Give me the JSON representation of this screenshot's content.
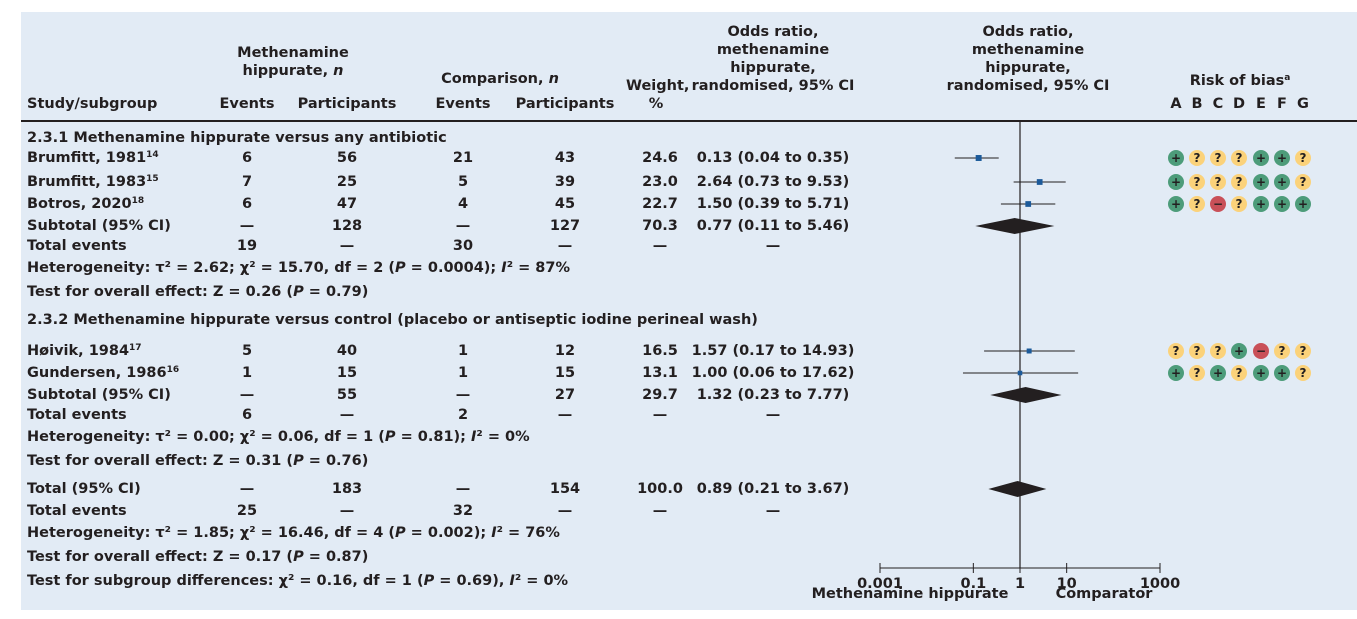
{
  "header": {
    "study": "Study/subgroup",
    "mh_group": "Methenamine hippurate,",
    "comp_group": "Comparison,",
    "n": "n",
    "events": "Events",
    "participants": "Participants",
    "weight": [
      "Weight,",
      "%"
    ],
    "or_text": [
      "Odds ratio,",
      "methenamine",
      "hippurate,",
      "randomised, 95% CI"
    ],
    "or_plot": [
      "Odds ratio,",
      "methenamine",
      "hippurate,",
      "randomised, 95% CI"
    ],
    "bias_title": "Risk of bias",
    "bias_sup": "a",
    "bias_cols": [
      "A",
      "B",
      "C",
      "D",
      "E",
      "F",
      "G"
    ]
  },
  "colors": {
    "panel": "#e2ebf5",
    "marker": "#1c5a9a",
    "diamond": "#231f20",
    "bias_low": "#4d9c7a",
    "bias_unclear": "#fbd27a",
    "bias_high": "#c95058"
  },
  "rows": [
    {
      "type": "sub",
      "label": "2.3.1 Methenamine hippurate versus any antibiotic"
    },
    {
      "type": "study",
      "name": "Brumfitt, 1981",
      "ref": "14",
      "e1": "6",
      "p1": "56",
      "e2": "21",
      "p2": "43",
      "w": "24.6",
      "ci": "0.13 (0.04 to 0.35)",
      "bias": [
        "+",
        "?",
        "?",
        "?",
        "+",
        "+",
        "?"
      ]
    },
    {
      "type": "study",
      "name": "Brumfitt, 1983",
      "ref": "15",
      "e1": "7",
      "p1": "25",
      "e2": "5",
      "p2": "39",
      "w": "23.0",
      "ci": "2.64 (0.73 to 9.53)",
      "bias": [
        "+",
        "?",
        "?",
        "?",
        "+",
        "+",
        "?"
      ]
    },
    {
      "type": "study",
      "name": "Botros, 2020",
      "ref": "18",
      "e1": "6",
      "p1": "47",
      "e2": "4",
      "p2": "45",
      "w": "22.7",
      "ci": "1.50 (0.39 to 5.71)",
      "bias": [
        "+",
        "?",
        "−",
        "?",
        "+",
        "+",
        "+"
      ]
    },
    {
      "type": "total",
      "name": "Subtotal (95% CI)",
      "e1": "—",
      "p1": "128",
      "e2": "—",
      "p2": "127",
      "w": "70.3",
      "ci": "0.77 (0.11 to 5.46)"
    },
    {
      "type": "total",
      "name": "Total events",
      "e1": "19",
      "p1": "—",
      "e2": "30",
      "p2": "—",
      "w": "—",
      "ci": "—"
    },
    {
      "type": "line",
      "text": "Heterogeneity: τ² = 2.62; χ² = 15.70, df = 2 (P = 0.0004); I² = 87%"
    },
    {
      "type": "line",
      "text": "Test for overall effect: Z = 0.26 (P = 0.79)"
    },
    {
      "type": "sub",
      "label": "2.3.2 Methenamine hippurate versus control (placebo or antiseptic iodine perineal wash)"
    },
    {
      "type": "study",
      "name": "Høivik, 1984",
      "ref": "17",
      "e1": "5",
      "p1": "40",
      "e2": "1",
      "p2": "12",
      "w": "16.5",
      "ci": "1.57 (0.17 to 14.93)",
      "bias": [
        "?",
        "?",
        "?",
        "+",
        "−",
        "?",
        "?"
      ]
    },
    {
      "type": "study",
      "name": "Gundersen, 1986",
      "ref": "16",
      "e1": "1",
      "p1": "15",
      "e2": "1",
      "p2": "15",
      "w": "13.1",
      "ci": "1.00 (0.06 to 17.62)",
      "bias": [
        "+",
        "?",
        "+",
        "?",
        "+",
        "+",
        "?"
      ]
    },
    {
      "type": "total",
      "name": "Subtotal (95% CI)",
      "e1": "—",
      "p1": "55",
      "e2": "—",
      "p2": "27",
      "w": "29.7",
      "ci": "1.32 (0.23 to 7.77)"
    },
    {
      "type": "total",
      "name": "Total events",
      "e1": "6",
      "p1": "—",
      "e2": "2",
      "p2": "—",
      "w": "—",
      "ci": "—"
    },
    {
      "type": "line",
      "text": "Heterogeneity: τ² = 0.00; χ² = 0.06, df = 1 (P = 0.81); I² = 0%"
    },
    {
      "type": "line",
      "text": "Test for overall effect: Z = 0.31 (P = 0.76)"
    },
    {
      "type": "total",
      "name": "Total (95% CI)",
      "e1": "—",
      "p1": "183",
      "e2": "—",
      "p2": "154",
      "w": "100.0",
      "ci": "0.89 (0.21 to 3.67)"
    },
    {
      "type": "total",
      "name": "Total events",
      "e1": "25",
      "p1": "—",
      "e2": "32",
      "p2": "—",
      "w": "—",
      "ci": "—"
    },
    {
      "type": "line",
      "text": "Heterogeneity: τ² = 1.85; χ² = 16.46, df = 4 (P = 0.002); I² = 76%"
    },
    {
      "type": "line",
      "text": "Test for overall effect: Z = 0.17 (P = 0.87)"
    },
    {
      "type": "line",
      "text": "Test for subgroup differences: χ² = 0.16, df = 1 (P = 0.69), I² = 0%"
    }
  ],
  "axis": {
    "ticks": [
      "0.001",
      "0.1",
      "1",
      "10",
      "1000"
    ],
    "left_label": "Methenamine hippurate",
    "right_label": "Comparator"
  },
  "chart_data": {
    "type": "forest",
    "scale": "log",
    "xlim": [
      0.001,
      1000
    ],
    "null_value": 1,
    "points": [
      {
        "name": "Brumfitt, 1981",
        "or": 0.13,
        "lo": 0.04,
        "hi": 0.35,
        "weight": 24.6
      },
      {
        "name": "Brumfitt, 1983",
        "or": 2.64,
        "lo": 0.73,
        "hi": 9.53,
        "weight": 23.0
      },
      {
        "name": "Botros, 2020",
        "or": 1.5,
        "lo": 0.39,
        "hi": 5.71,
        "weight": 22.7
      },
      {
        "name": "Subtotal (95% CI)",
        "or": 0.77,
        "lo": 0.11,
        "hi": 5.46,
        "pooled": true
      },
      {
        "name": "Høivik, 1984",
        "or": 1.57,
        "lo": 0.17,
        "hi": 14.93,
        "weight": 16.5
      },
      {
        "name": "Gundersen, 1986",
        "or": 1.0,
        "lo": 0.06,
        "hi": 17.62,
        "weight": 13.1
      },
      {
        "name": "Subtotal (95% CI)",
        "or": 1.32,
        "lo": 0.23,
        "hi": 7.77,
        "pooled": true
      },
      {
        "name": "Total (95% CI)",
        "or": 0.89,
        "lo": 0.21,
        "hi": 3.67,
        "pooled": true
      }
    ]
  }
}
